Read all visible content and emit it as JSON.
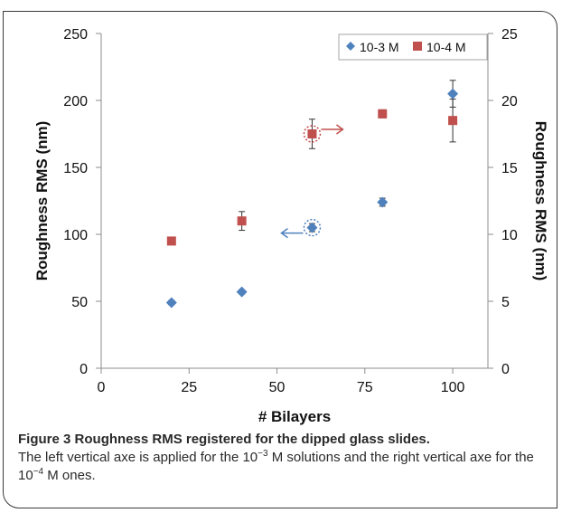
{
  "chart_data": {
    "type": "scatter",
    "title": "",
    "xlabel": "# Bilayers",
    "ylabel": "Roughness RMS (nm)",
    "y2label": "Roughness RMS (nm)",
    "xlim": [
      0,
      110
    ],
    "xticks": [
      0,
      25,
      50,
      75,
      100
    ],
    "ylim": [
      0,
      250
    ],
    "yticks": [
      0,
      50,
      100,
      150,
      200,
      250
    ],
    "y2lim": [
      0,
      25
    ],
    "y2ticks": [
      0,
      5,
      10,
      15,
      20,
      25
    ],
    "grid": false,
    "legend_position": "top-right",
    "series": [
      {
        "name": "10-3 M",
        "axis": "left",
        "marker": "diamond",
        "color": "#4f81bd",
        "points": [
          {
            "x": 20,
            "y": 49,
            "err": 1.5
          },
          {
            "x": 40,
            "y": 57,
            "err": 1.5
          },
          {
            "x": 60,
            "y": 105,
            "err": 3
          },
          {
            "x": 80,
            "y": 124,
            "err": 3
          },
          {
            "x": 100,
            "y": 205,
            "err": 10
          }
        ]
      },
      {
        "name": "10-4 M",
        "axis": "right",
        "marker": "square",
        "color": "#c0504d",
        "points": [
          {
            "x": 20,
            "y": 9.5,
            "err": 0.15
          },
          {
            "x": 40,
            "y": 11.0,
            "err": 0.7
          },
          {
            "x": 60,
            "y": 17.5,
            "err": 1.1
          },
          {
            "x": 80,
            "y": 19.0,
            "err": 0.3
          },
          {
            "x": 100,
            "y": 18.5,
            "err": 1.6
          }
        ]
      }
    ],
    "annotations": [
      {
        "kind": "arrow",
        "series": "10-3 M",
        "x": 60,
        "direction": "left"
      },
      {
        "kind": "arrow",
        "series": "10-4 M",
        "x": 60,
        "direction": "right"
      }
    ]
  },
  "caption": {
    "figure_label": "Figure 3",
    "title": "Roughness RMS registered for the dipped glass slides.",
    "text_before_sup1": "The left vertical axe is applied for the 10",
    "sup1": "−3",
    "text_between": " M solutions and the right vertical axe for the 10",
    "sup2": "−4",
    "text_after": " M ones."
  }
}
